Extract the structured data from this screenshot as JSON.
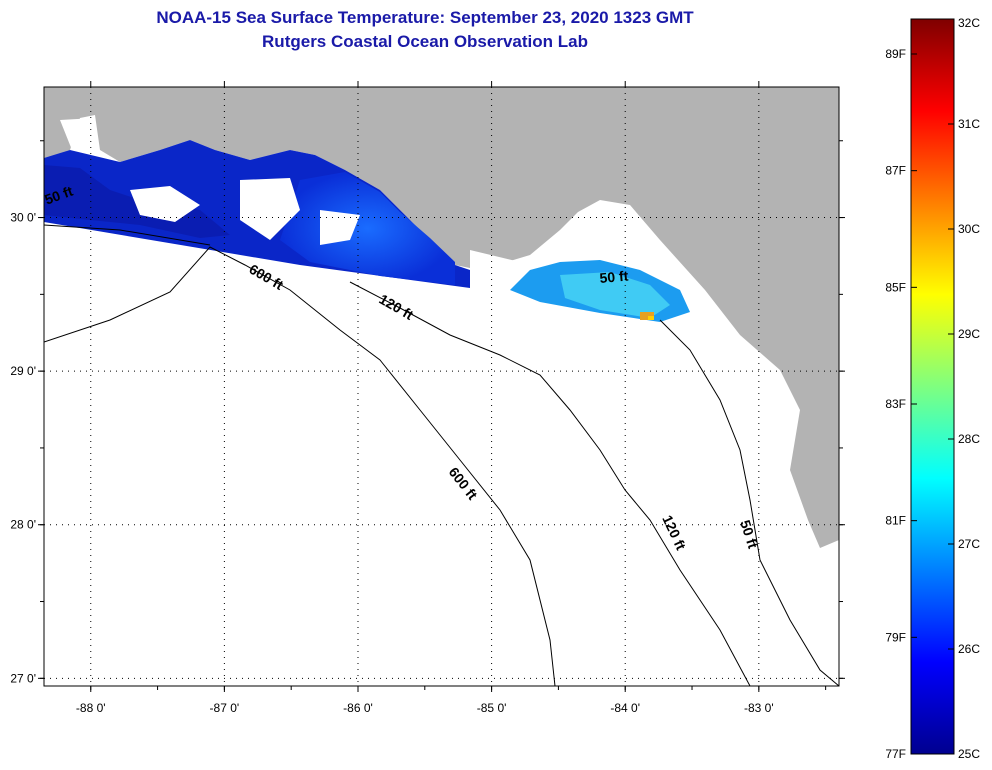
{
  "title": {
    "line1": "NOAA-15 Sea Surface Temperature:  September 23, 2020 1323 GMT",
    "line2": "Rutgers Coastal Ocean Observation Lab"
  },
  "map": {
    "lon_range": [
      -88.35,
      -82.4
    ],
    "lat_range": [
      26.95,
      30.85
    ],
    "lon_ticks": [
      {
        "value": -88,
        "label": "-88 0'"
      },
      {
        "value": -87,
        "label": "-87 0'"
      },
      {
        "value": -86,
        "label": "-86 0'"
      },
      {
        "value": -85,
        "label": "-85 0'"
      },
      {
        "value": -84,
        "label": "-84 0'"
      },
      {
        "value": -83,
        "label": "-83 0'"
      }
    ],
    "lat_ticks": [
      {
        "value": 30,
        "label": "30 0'"
      },
      {
        "value": 29,
        "label": "29 0'"
      },
      {
        "value": 28,
        "label": "28 0'"
      },
      {
        "value": 27,
        "label": "27 0'"
      }
    ],
    "land_color": "#b3b3b3",
    "contour_labels": [
      {
        "text": "50 ft"
      },
      {
        "text": "600 ft"
      },
      {
        "text": "120 ft"
      },
      {
        "text": "50 ft"
      },
      {
        "text": "600 ft"
      },
      {
        "text": "120 ft"
      },
      {
        "text": "50 ft"
      }
    ]
  },
  "colorbar": {
    "celsius_labels": [
      "32C",
      "31C",
      "30C",
      "29C",
      "28C",
      "27C",
      "26C",
      "25C"
    ],
    "fahrenheit_labels": [
      "89F",
      "87F",
      "85F",
      "83F",
      "81F",
      "79F",
      "77F"
    ],
    "celsius_range": [
      25,
      32
    ],
    "colors": [
      "#00008f",
      "#0000ff",
      "#007fff",
      "#00ffff",
      "#7fff7f",
      "#ffff00",
      "#ff7f00",
      "#ff0000",
      "#7f0000"
    ]
  }
}
